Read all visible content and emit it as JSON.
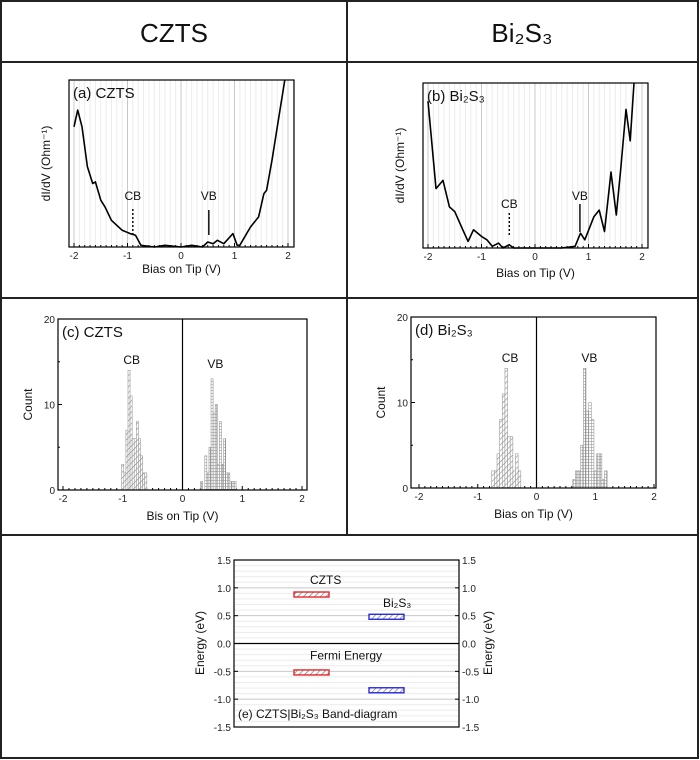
{
  "headers": {
    "left": "CZTS",
    "right": "Bi₂S₃"
  },
  "colors": {
    "czts_band": "#e8262a",
    "bi2s3_band": "#2a2ae8",
    "curve": "#000000",
    "grid": "#d9d9d9"
  },
  "chart_data": [
    {
      "id": "a",
      "type": "line",
      "label": "(a) CZTS",
      "xlabel": "Bias on Tip (V)",
      "ylabel": "dI/dV (Ohm⁻¹)",
      "xlim": [
        -2.1,
        2.1
      ],
      "xticks": [
        -2,
        -1,
        0,
        1,
        2
      ],
      "yticks_shown": false,
      "grid": "vertical",
      "x": [
        -2.0,
        -1.93,
        -1.85,
        -1.75,
        -1.65,
        -1.6,
        -1.5,
        -1.42,
        -1.3,
        -1.1,
        -0.95,
        -0.85,
        -0.75,
        -0.5,
        -0.3,
        0,
        0.2,
        0.4,
        0.5,
        0.6,
        0.68,
        0.8,
        0.97,
        1.05,
        1.1,
        1.3,
        1.45,
        1.55,
        1.6,
        1.7,
        1.8,
        1.94
      ],
      "y": [
        0.72,
        0.82,
        0.72,
        0.48,
        0.38,
        0.39,
        0.28,
        0.24,
        0.16,
        0.1,
        0.08,
        0.07,
        0.01,
        0.0,
        0.01,
        0.0,
        0.01,
        0.0,
        0.03,
        0.02,
        0.04,
        0.02,
        0.08,
        0.01,
        0.01,
        0.12,
        0.18,
        0.32,
        0.34,
        0.52,
        0.72,
        1.0
      ],
      "annotations": [
        {
          "text": "CB",
          "x": -0.9,
          "style": "dashed"
        },
        {
          "text": "VB",
          "x": 0.52,
          "style": "solid"
        }
      ]
    },
    {
      "id": "b",
      "type": "line",
      "label": "(b) Bi₂S₃",
      "xlabel": "Bias on Tip (V)",
      "ylabel": "dI/dV (Ohm⁻¹)",
      "xlim": [
        -2.1,
        2.1
      ],
      "xticks": [
        -2,
        -1,
        0,
        1,
        2
      ],
      "yticks_shown": false,
      "grid": "vertical",
      "x": [
        -2.0,
        -1.85,
        -1.72,
        -1.6,
        -1.5,
        -1.35,
        -1.25,
        -1.15,
        -1.0,
        -0.9,
        -0.8,
        -0.68,
        -0.6,
        -0.48,
        -0.4,
        0,
        0.5,
        0.75,
        0.85,
        0.93,
        1.1,
        1.2,
        1.3,
        1.42,
        1.52,
        1.6,
        1.7,
        1.78,
        1.85
      ],
      "y": [
        0.89,
        0.36,
        0.41,
        0.25,
        0.22,
        0.11,
        0.04,
        0.11,
        0.07,
        0.05,
        0.01,
        0.03,
        0.0,
        0.02,
        0.0,
        0.0,
        0.0,
        0.01,
        0.09,
        0.05,
        0.19,
        0.23,
        0.1,
        0.46,
        0.2,
        0.47,
        0.84,
        0.65,
        1.0
      ],
      "annotations": [
        {
          "text": "CB",
          "x": -0.48,
          "style": "dashed"
        },
        {
          "text": "VB",
          "x": 0.84,
          "style": "solid"
        }
      ]
    },
    {
      "id": "c",
      "type": "bar",
      "label": "(c) CZTS",
      "xlabel": "Bis on Tip (V)",
      "ylabel": "Count",
      "xlim": [
        -2.1,
        2.1
      ],
      "ylim": [
        0,
        20
      ],
      "xticks": [
        -2,
        -1,
        0,
        1,
        2
      ],
      "yticks": [
        0,
        10,
        20
      ],
      "bin_width": 0.035,
      "series": [
        {
          "name": "CB",
          "x": [
            -1.0,
            -0.965,
            -0.93,
            -0.895,
            -0.86,
            -0.825,
            -0.79,
            -0.755,
            -0.72,
            -0.685,
            -0.65,
            -0.615
          ],
          "counts": [
            3,
            2,
            7,
            14,
            11,
            6,
            6,
            8,
            6,
            4,
            2,
            2
          ]
        },
        {
          "name": "VB",
          "x": [
            0.32,
            0.355,
            0.39,
            0.425,
            0.46,
            0.495,
            0.53,
            0.565,
            0.6,
            0.635,
            0.67,
            0.705,
            0.74,
            0.775,
            0.81,
            0.845,
            0.88
          ],
          "counts": [
            1,
            0,
            4,
            2,
            5,
            13,
            9,
            10,
            3,
            8,
            3,
            6,
            2,
            2,
            1,
            1,
            1
          ]
        }
      ]
    },
    {
      "id": "d",
      "type": "bar",
      "label": "(d) Bi₂S₃",
      "xlabel": "Bias on Tip (V)",
      "ylabel": "Count",
      "xlim": [
        -2.1,
        2.1
      ],
      "ylim": [
        0,
        20
      ],
      "xticks": [
        -2,
        -1,
        0,
        1,
        2
      ],
      "yticks": [
        0,
        10,
        20
      ],
      "bin_width": 0.045,
      "series": [
        {
          "name": "CB",
          "x": [
            -0.74,
            -0.695,
            -0.65,
            -0.605,
            -0.56,
            -0.515,
            -0.47,
            -0.425,
            -0.38,
            -0.335,
            -0.29
          ],
          "counts": [
            2,
            2,
            4,
            8,
            11,
            14,
            6,
            6,
            2,
            4,
            2
          ]
        },
        {
          "name": "VB",
          "x": [
            0.64,
            0.685,
            0.73,
            0.775,
            0.82,
            0.865,
            0.91,
            0.955,
            1.0,
            1.045,
            1.09,
            1.135,
            1.18
          ],
          "counts": [
            1,
            2,
            2,
            5,
            14,
            9,
            10,
            8,
            2,
            4,
            4,
            1,
            2
          ]
        }
      ]
    },
    {
      "id": "e",
      "type": "bar",
      "label": "(e) CZTS|Bi₂S₃ Band-diagram",
      "ylabel": "Energy (eV)",
      "ylabel_right": "Energy (eV)",
      "ylim": [
        -1.5,
        1.5
      ],
      "yticks": [
        "-1.5",
        "-1.0",
        "-0.5",
        "0.0",
        "0.5",
        "1.0",
        "1.5"
      ],
      "grid": "horizontal",
      "fermi_label": "Fermi Energy",
      "materials": [
        {
          "name": "CZTS",
          "levels": [
            0.88,
            -0.52
          ],
          "color": "#e8262a"
        },
        {
          "name": "Bi₂S₃",
          "levels": [
            0.48,
            -0.84
          ],
          "color": "#2a2ae8"
        }
      ]
    }
  ]
}
